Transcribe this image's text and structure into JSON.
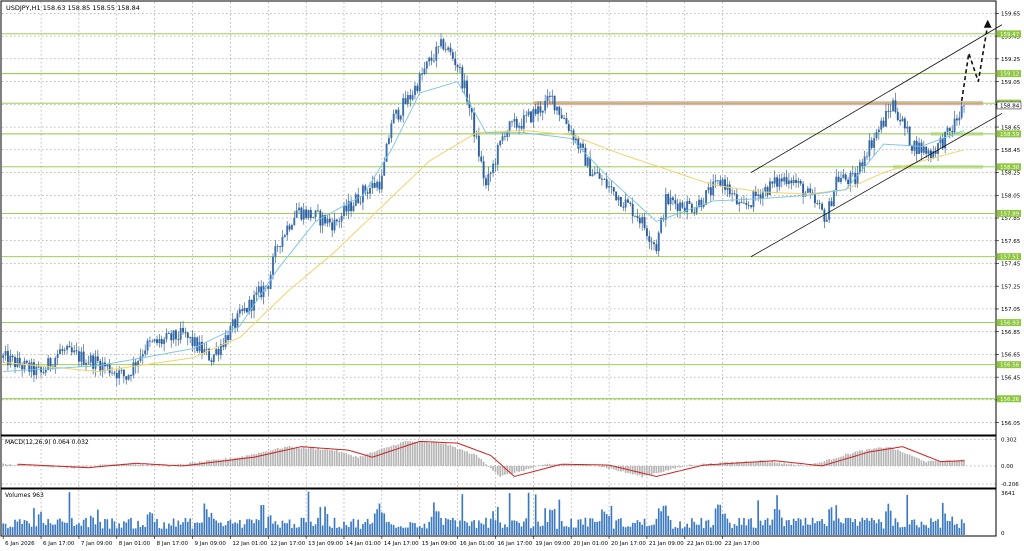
{
  "chart_data": {
    "type": "candlestick",
    "symbol_info": "USDJPY,H1  158.63 158.85 158.55 158.84",
    "price_axis": {
      "ylim": [
        155.95,
        159.75
      ],
      "ticks": [
        "159.65",
        "159.45",
        "159.25",
        "159.05",
        "158.85",
        "158.65",
        "158.45",
        "158.25",
        "158.05",
        "157.85",
        "157.65",
        "157.45",
        "157.25",
        "157.05",
        "156.85",
        "156.65",
        "156.45",
        "156.25",
        "156.05"
      ],
      "tick_values": [
        159.65,
        159.45,
        159.25,
        159.05,
        158.85,
        158.65,
        158.45,
        158.25,
        158.05,
        157.85,
        157.65,
        157.45,
        157.25,
        157.05,
        156.85,
        156.65,
        156.45,
        156.25,
        156.05
      ]
    },
    "time_axis": {
      "labels": [
        "6 Jan 2026",
        "6 Jan 17:00",
        "7 Jan 09:00",
        "8 Jan 01:00",
        "8 Jan 17:00",
        "9 Jan 09:00",
        "12 Jan 01:00",
        "12 Jan 17:00",
        "13 Jan 09:00",
        "14 Jan 01:00",
        "14 Jan 17:00",
        "15 Jan 09:00",
        "16 Jan 01:00",
        "16 Jan 17:00",
        "19 Jan 09:00",
        "20 Jan 01:00",
        "20 Jan 17:00",
        "21 Jan 09:00",
        "22 Jan 01:00",
        "22 Jan 17:00"
      ],
      "bars_per_label": 16
    },
    "levels": [
      {
        "label": "159.47",
        "value": 159.47
      },
      {
        "label": "159.12",
        "value": 159.12
      },
      {
        "label": "158.86",
        "value": 158.86
      },
      {
        "label": "158.84",
        "value": 158.84
      },
      {
        "label": "158.59",
        "value": 158.59
      },
      {
        "label": "158.30",
        "value": 158.3
      },
      {
        "label": "157.89",
        "value": 157.89
      },
      {
        "label": "157.51",
        "value": 157.51
      },
      {
        "label": "156.93",
        "value": 156.93
      },
      {
        "label": "156.56",
        "value": 156.56
      },
      {
        "label": "156.26",
        "value": 156.26
      }
    ],
    "price_path": [
      [
        0,
        156.62
      ],
      [
        16,
        156.48
      ],
      [
        24,
        156.68
      ],
      [
        40,
        156.58
      ],
      [
        52,
        156.45
      ],
      [
        60,
        156.72
      ],
      [
        76,
        156.82
      ],
      [
        88,
        156.62
      ],
      [
        100,
        156.98
      ],
      [
        112,
        157.28
      ],
      [
        116,
        157.62
      ],
      [
        124,
        157.92
      ],
      [
        132,
        157.86
      ],
      [
        140,
        157.8
      ],
      [
        152,
        158.08
      ],
      [
        160,
        158.18
      ],
      [
        164,
        158.7
      ],
      [
        172,
        158.92
      ],
      [
        180,
        159.22
      ],
      [
        186,
        159.38
      ],
      [
        192,
        159.2
      ],
      [
        196,
        158.92
      ],
      [
        204,
        158.12
      ],
      [
        212,
        158.62
      ],
      [
        220,
        158.7
      ],
      [
        232,
        158.9
      ],
      [
        240,
        158.62
      ],
      [
        248,
        158.28
      ],
      [
        256,
        158.12
      ],
      [
        268,
        157.88
      ],
      [
        276,
        157.6
      ],
      [
        280,
        158.0
      ],
      [
        292,
        157.95
      ],
      [
        304,
        158.18
      ],
      [
        312,
        157.92
      ],
      [
        320,
        158.08
      ],
      [
        332,
        158.22
      ],
      [
        340,
        158.05
      ],
      [
        348,
        157.85
      ],
      [
        352,
        158.2
      ],
      [
        360,
        158.18
      ],
      [
        364,
        158.42
      ],
      [
        372,
        158.7
      ],
      [
        376,
        158.86
      ],
      [
        384,
        158.5
      ],
      [
        392,
        158.42
      ],
      [
        400,
        158.6
      ],
      [
        406,
        158.84
      ]
    ],
    "ma_fast": [
      [
        0,
        156.5
      ],
      [
        40,
        156.55
      ],
      [
        80,
        156.7
      ],
      [
        100,
        156.9
      ],
      [
        116,
        157.4
      ],
      [
        132,
        157.82
      ],
      [
        152,
        158.05
      ],
      [
        164,
        158.45
      ],
      [
        176,
        158.95
      ],
      [
        192,
        159.05
      ],
      [
        204,
        158.6
      ],
      [
        220,
        158.6
      ],
      [
        240,
        158.55
      ],
      [
        256,
        158.2
      ],
      [
        276,
        157.82
      ],
      [
        300,
        158.0
      ],
      [
        320,
        158.02
      ],
      [
        340,
        158.05
      ],
      [
        356,
        158.1
      ],
      [
        372,
        158.5
      ],
      [
        388,
        158.48
      ],
      [
        406,
        158.62
      ]
    ],
    "ma_slow": [
      [
        0,
        156.58
      ],
      [
        40,
        156.5
      ],
      [
        80,
        156.62
      ],
      [
        100,
        156.8
      ],
      [
        120,
        157.2
      ],
      [
        140,
        157.55
      ],
      [
        160,
        157.95
      ],
      [
        180,
        158.35
      ],
      [
        200,
        158.6
      ],
      [
        220,
        158.62
      ],
      [
        240,
        158.58
      ],
      [
        260,
        158.42
      ],
      [
        280,
        158.28
      ],
      [
        300,
        158.14
      ],
      [
        320,
        158.08
      ],
      [
        340,
        158.06
      ],
      [
        356,
        158.1
      ],
      [
        372,
        158.25
      ],
      [
        388,
        158.35
      ],
      [
        406,
        158.45
      ]
    ],
    "channel": {
      "upper": [
        [
          316,
          158.25
        ],
        [
          422,
          159.55
        ]
      ],
      "lower": [
        [
          316,
          157.51
        ],
        [
          422,
          158.77
        ]
      ]
    },
    "resistance_zone": {
      "from_bar": 224,
      "to_bar": 414,
      "value": 158.86
    },
    "support_zones": [
      {
        "from_bar": 392,
        "to_bar": 414,
        "value": 158.59
      },
      {
        "from_bar": 376,
        "to_bar": 414,
        "value": 158.3
      }
    ],
    "forecast_arrow": [
      [
        405,
        158.88
      ],
      [
        408,
        159.3
      ],
      [
        412,
        159.05
      ],
      [
        416,
        159.55
      ]
    ],
    "macd": {
      "label": "MACD(12,26,9) 0.064 0.032",
      "ylim": [
        -0.24,
        0.33
      ],
      "ticks": [
        "0.302",
        "0.00",
        "-0.206"
      ],
      "tick_values": [
        0.302,
        0.0,
        -0.206
      ],
      "path": [
        [
          0,
          0.02
        ],
        [
          30,
          -0.02
        ],
        [
          50,
          0.03
        ],
        [
          70,
          0.0
        ],
        [
          100,
          0.1
        ],
        [
          120,
          0.22
        ],
        [
          140,
          0.18
        ],
        [
          150,
          0.1
        ],
        [
          170,
          0.28
        ],
        [
          186,
          0.26
        ],
        [
          200,
          0.12
        ],
        [
          210,
          -0.12
        ],
        [
          230,
          0.02
        ],
        [
          250,
          0.01
        ],
        [
          270,
          -0.12
        ],
        [
          290,
          0.01
        ],
        [
          320,
          0.06
        ],
        [
          340,
          0.0
        ],
        [
          360,
          0.16
        ],
        [
          374,
          0.22
        ],
        [
          390,
          0.05
        ],
        [
          406,
          0.064
        ]
      ]
    },
    "volume": {
      "label": "Volumes 963",
      "max_value": 3641,
      "ticks": [
        "3641",
        "0"
      ],
      "tick_values": [
        3641,
        0
      ]
    },
    "colors": {
      "bull": "#3a6fb0",
      "bear": "#3a6fb0",
      "ma_fast": "#77c4e6",
      "ma_slow": "#f1d36b",
      "level": "#8fc63f",
      "resistance": "#e7a6a6",
      "grid": "#7a7a7a",
      "macd_line": "#cc2222",
      "macd_hist": "#b5b5b5",
      "volume": "#3a78c0"
    }
  }
}
